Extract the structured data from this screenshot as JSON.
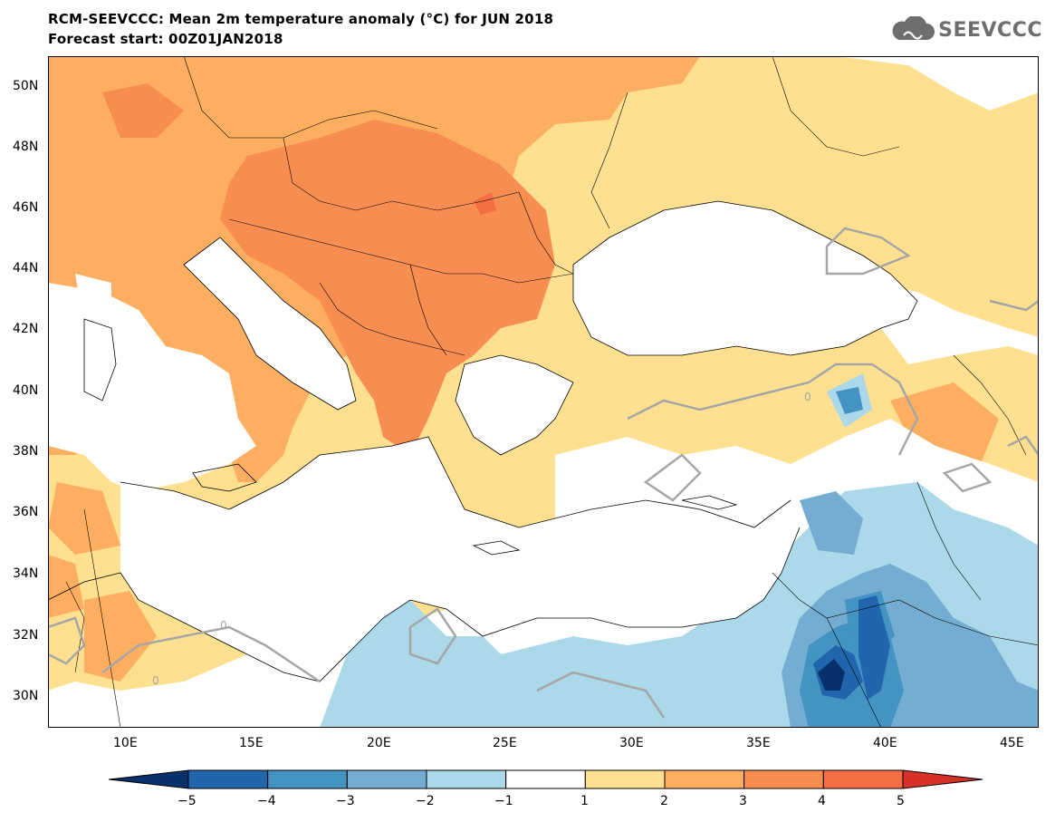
{
  "title": {
    "line1": "RCM-SEEVCCC: Mean 2m temperature anomaly (°C) for JUN 2018",
    "line2": "Forecast start: 00Z01JAN2018"
  },
  "logo": {
    "text": "SEEVCCC",
    "icon": "cloud-icon"
  },
  "map": {
    "latitude_labels": [
      "50N",
      "48N",
      "46N",
      "44N",
      "42N",
      "40N",
      "38N",
      "36N",
      "34N",
      "32N",
      "30N"
    ],
    "longitude_labels": [
      "10E",
      "15E",
      "20E",
      "25E",
      "30E",
      "35E",
      "40E",
      "45E"
    ],
    "contour_label": "0"
  },
  "colorbar": {
    "tick_labels": [
      "−5",
      "−4",
      "−3",
      "−2",
      "−1",
      "1",
      "2",
      "3",
      "4",
      "5"
    ],
    "colors": [
      "#08306b",
      "#2166ac",
      "#4393c3",
      "#74add1",
      "#abd9e9",
      "#ffffff",
      "#fee090",
      "#fdae61",
      "#f88d52",
      "#f46d43",
      "#d73027"
    ]
  },
  "chart_data": {
    "type": "heatmap",
    "variable": "Mean 2m temperature anomaly",
    "units": "°C",
    "levels": [
      -5,
      -4,
      -3,
      -2,
      -1,
      1,
      2,
      3,
      4,
      5
    ],
    "lat_range": [
      29,
      51
    ],
    "lon_range": [
      7,
      46
    ]
  }
}
